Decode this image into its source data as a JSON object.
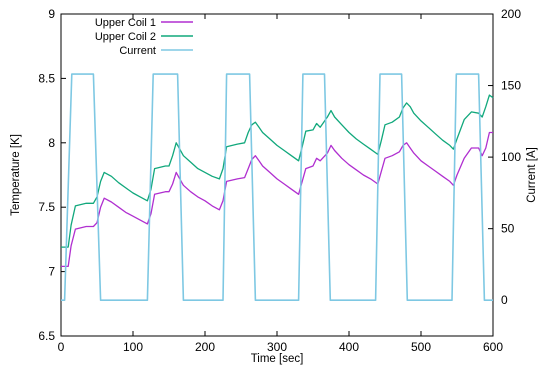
{
  "chart_data": {
    "type": "line",
    "xlabel": "Time [sec]",
    "ylabel": "Temperature [K]",
    "y2label": "Current [A]",
    "xlim": [
      0,
      600
    ],
    "ylim": [
      6.5,
      9
    ],
    "y2lim": [
      -25,
      200
    ],
    "xticks": [
      "0",
      "100",
      "200",
      "300",
      "400",
      "500",
      "600"
    ],
    "yticks": [
      "6.5",
      "7",
      "7.5",
      "8",
      "8.5",
      "9"
    ],
    "y2ticks": [
      "0",
      "50",
      "100",
      "150",
      "200"
    ],
    "grid": false,
    "legend_position": "top-left",
    "series": [
      {
        "name": "Upper Coil 1",
        "axis": "left",
        "color": "#b02fd0",
        "x": [
          0,
          10,
          14,
          20,
          35,
          45,
          50,
          55,
          60,
          70,
          80,
          90,
          100,
          110,
          120,
          125,
          130,
          145,
          150,
          155,
          160,
          165,
          170,
          180,
          190,
          200,
          210,
          220,
          225,
          230,
          245,
          255,
          260,
          265,
          270,
          275,
          280,
          290,
          300,
          310,
          320,
          330,
          335,
          340,
          350,
          355,
          360,
          370,
          375,
          380,
          390,
          400,
          410,
          420,
          430,
          440,
          445,
          450,
          460,
          470,
          475,
          480,
          485,
          490,
          500,
          510,
          520,
          530,
          540,
          545,
          550,
          560,
          570,
          580,
          585,
          590,
          595,
          600
        ],
        "y": [
          7.04,
          7.04,
          7.2,
          7.33,
          7.35,
          7.35,
          7.38,
          7.5,
          7.57,
          7.54,
          7.5,
          7.46,
          7.43,
          7.4,
          7.37,
          7.45,
          7.6,
          7.62,
          7.62,
          7.68,
          7.77,
          7.72,
          7.67,
          7.62,
          7.58,
          7.55,
          7.51,
          7.48,
          7.55,
          7.7,
          7.72,
          7.73,
          7.8,
          7.87,
          7.9,
          7.86,
          7.82,
          7.77,
          7.72,
          7.68,
          7.64,
          7.6,
          7.7,
          7.8,
          7.82,
          7.88,
          7.86,
          7.92,
          7.98,
          7.94,
          7.88,
          7.83,
          7.79,
          7.75,
          7.72,
          7.68,
          7.78,
          7.88,
          7.9,
          7.93,
          7.98,
          8.0,
          7.96,
          7.92,
          7.86,
          7.82,
          7.78,
          7.74,
          7.7,
          7.67,
          7.75,
          7.88,
          7.96,
          7.96,
          7.9,
          7.96,
          8.08,
          8.08
        ]
      },
      {
        "name": "Upper Coil 2",
        "axis": "left",
        "color": "#11a87c",
        "x": [
          0,
          10,
          14,
          20,
          35,
          45,
          50,
          55,
          60,
          70,
          80,
          90,
          100,
          110,
          120,
          125,
          130,
          145,
          150,
          155,
          160,
          165,
          170,
          180,
          190,
          200,
          210,
          220,
          225,
          230,
          245,
          255,
          260,
          265,
          270,
          275,
          280,
          290,
          300,
          310,
          320,
          330,
          335,
          340,
          350,
          355,
          360,
          370,
          375,
          380,
          390,
          400,
          410,
          420,
          430,
          440,
          445,
          450,
          460,
          470,
          475,
          480,
          485,
          490,
          500,
          510,
          520,
          530,
          540,
          545,
          550,
          560,
          570,
          580,
          585,
          590,
          595,
          600
        ],
        "y": [
          7.19,
          7.19,
          7.36,
          7.51,
          7.53,
          7.53,
          7.58,
          7.7,
          7.77,
          7.74,
          7.69,
          7.65,
          7.61,
          7.58,
          7.55,
          7.64,
          7.8,
          7.82,
          7.82,
          7.9,
          8.0,
          7.95,
          7.9,
          7.85,
          7.8,
          7.77,
          7.74,
          7.72,
          7.8,
          7.97,
          7.99,
          8.0,
          8.08,
          8.14,
          8.16,
          8.12,
          8.08,
          8.03,
          7.98,
          7.94,
          7.9,
          7.86,
          7.97,
          8.09,
          8.1,
          8.15,
          8.12,
          8.2,
          8.25,
          8.2,
          8.14,
          8.08,
          8.03,
          7.99,
          7.95,
          7.91,
          8.02,
          8.14,
          8.16,
          8.2,
          8.27,
          8.31,
          8.28,
          8.23,
          8.17,
          8.12,
          8.07,
          8.02,
          7.98,
          7.95,
          8.03,
          8.18,
          8.24,
          8.23,
          8.2,
          8.28,
          8.37,
          8.35
        ]
      },
      {
        "name": "Current",
        "axis": "right",
        "color": "#7ec8e3",
        "x": [
          0,
          5,
          15,
          45,
          55,
          120,
          128,
          162,
          170,
          225,
          230,
          262,
          270,
          330,
          336,
          366,
          374,
          437,
          443,
          473,
          481,
          543,
          549,
          580,
          588,
          600
        ],
        "y": [
          0,
          0,
          158,
          158,
          0,
          0,
          158,
          158,
          0,
          0,
          158,
          158,
          0,
          0,
          158,
          158,
          0,
          0,
          158,
          158,
          0,
          0,
          158,
          158,
          0,
          0
        ]
      }
    ]
  }
}
